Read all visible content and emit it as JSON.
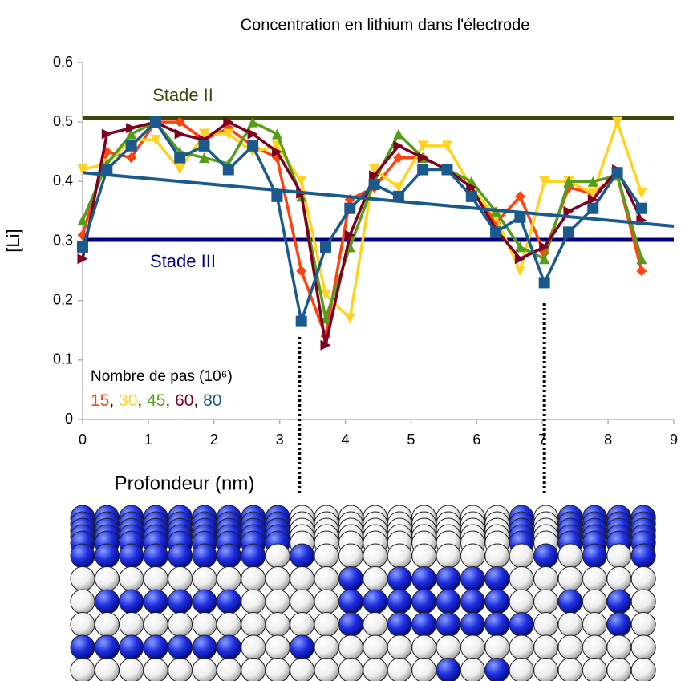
{
  "chart_data": {
    "type": "line",
    "title": "Concentration en lithium dans l'électrode",
    "xlabel": "Profondeur (nm)",
    "ylabel": "[Li]",
    "x": [
      0,
      0.37,
      0.74,
      1.11,
      1.48,
      1.85,
      2.22,
      2.59,
      2.96,
      3.33,
      3.7,
      4.07,
      4.44,
      4.81,
      5.18,
      5.55,
      5.92,
      6.29,
      6.66,
      7.03,
      7.4,
      7.77,
      8.14,
      8.51
    ],
    "series": [
      {
        "name": "15",
        "color": "#ff420e",
        "marker": "diamond",
        "values": [
          0.31,
          0.45,
          0.44,
          0.5,
          0.5,
          0.47,
          0.49,
          0.46,
          0.44,
          0.25,
          0.14,
          0.37,
          0.39,
          0.44,
          0.44,
          0.42,
          0.39,
          0.33,
          0.375,
          0.28,
          0.39,
          0.38,
          0.41,
          0.25
        ]
      },
      {
        "name": "30",
        "color": "#ffd320",
        "marker": "triangle-down",
        "values": [
          0.42,
          0.43,
          0.47,
          0.47,
          0.42,
          0.48,
          0.48,
          0.45,
          0.46,
          0.4,
          0.21,
          0.17,
          0.42,
          0.39,
          0.46,
          0.46,
          0.39,
          0.34,
          0.25,
          0.4,
          0.4,
          0.38,
          0.5,
          0.38
        ]
      },
      {
        "name": "45",
        "color": "#579d1c",
        "marker": "triangle-up",
        "values": [
          0.335,
          0.43,
          0.48,
          0.5,
          0.45,
          0.44,
          0.43,
          0.5,
          0.48,
          0.375,
          0.17,
          0.29,
          0.4,
          0.48,
          0.44,
          0.42,
          0.4,
          0.35,
          0.29,
          0.27,
          0.4,
          0.4,
          0.41,
          0.27
        ]
      },
      {
        "name": "60",
        "color": "#7e0021",
        "marker": "triangle-right",
        "values": [
          0.27,
          0.48,
          0.49,
          0.5,
          0.48,
          0.47,
          0.5,
          0.48,
          0.45,
          0.38,
          0.125,
          0.31,
          0.41,
          0.46,
          0.44,
          0.42,
          0.39,
          0.32,
          0.27,
          0.29,
          0.35,
          0.37,
          0.42,
          0.335
        ]
      },
      {
        "name": "80",
        "color": "#1a5a8c",
        "marker": "square",
        "values": [
          0.29,
          0.42,
          0.46,
          0.5,
          0.44,
          0.46,
          0.42,
          0.46,
          0.375,
          0.165,
          0.29,
          0.355,
          0.395,
          0.375,
          0.42,
          0.42,
          0.375,
          0.315,
          0.34,
          0.23,
          0.315,
          0.355,
          0.415,
          0.355
        ]
      }
    ],
    "trendline": {
      "x": [
        0,
        9
      ],
      "values": [
        0.415,
        0.325
      ],
      "color": "#1a5a8c"
    },
    "reference_lines": [
      {
        "label": "Stade II",
        "value": 0.507,
        "color": "#3d4a0b"
      },
      {
        "label": "Stade III",
        "value": 0.302,
        "color": "#00007f"
      }
    ],
    "markers": [
      3.3,
      7.03
    ],
    "legend_title": "Nombre de pas (10⁶)",
    "legend_separator": ", ",
    "xlim": [
      0,
      9
    ],
    "xticks": [
      0,
      1,
      2,
      3,
      4,
      5,
      6,
      7,
      8,
      9
    ],
    "ylim": [
      0,
      0.6
    ],
    "yticks": [
      0,
      {
        "value": 0.1,
        "label": "0,1"
      },
      {
        "value": 0.2,
        "label": "0,2"
      },
      {
        "value": 0.3,
        "label": "0,3"
      },
      {
        "value": 0.4,
        "label": "0,4"
      },
      {
        "value": 0.5,
        "label": "0,5"
      },
      {
        "value": 0.6,
        "label": "0,6"
      }
    ],
    "grid": false
  }
}
